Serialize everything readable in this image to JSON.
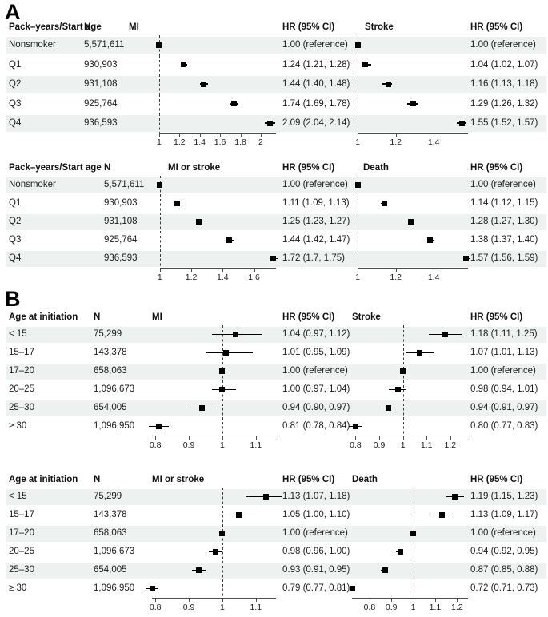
{
  "figure": {
    "panel_a_label": "A",
    "panel_b_label": "B"
  },
  "colors": {
    "stripe": "#edf1f0",
    "marker": "#000000",
    "text": "#1b1b1b",
    "axis": "#4d4d4d"
  },
  "chart_data": [
    {
      "type": "forest",
      "panel": "A",
      "columns": [
        "Pack–years/Start age",
        "N",
        "MI",
        "HR (95% CI)",
        "Stroke",
        "HR (95% CI)"
      ],
      "plots": [
        {
          "name": "MI",
          "domain": [
            0.93,
            2.15
          ],
          "line": [
            1.0,
            2.15
          ],
          "ref": 1.0,
          "ticks": [
            {
              "v": 1,
              "t": "1"
            },
            {
              "v": 1.2,
              "t": "1.2"
            },
            {
              "v": 1.4,
              "t": "1.4"
            },
            {
              "v": 1.6,
              "t": "1.6"
            },
            {
              "v": 1.8,
              "t": "1.8"
            },
            {
              "v": 2,
              "t": "2"
            }
          ]
        },
        {
          "name": "Stroke",
          "domain": [
            0.97,
            1.58
          ],
          "line": [
            1.0,
            1.58
          ],
          "ref": 1.0,
          "ticks": [
            {
              "v": 1,
              "t": "1"
            },
            {
              "v": 1.2,
              "t": "1.2"
            },
            {
              "v": 1.4,
              "t": "1.4"
            }
          ]
        }
      ],
      "rows": [
        {
          "label": "Nonsmoker",
          "n": "5,571,611",
          "est": [
            {
              "hr": 1.0,
              "lo": 1.0,
              "hi": 1.0,
              "text": "1.00 (reference)"
            },
            {
              "hr": 1.0,
              "lo": 1.0,
              "hi": 1.0,
              "text": "1.00 (reference)"
            }
          ]
        },
        {
          "label": "Q1",
          "n": "930,903",
          "est": [
            {
              "hr": 1.24,
              "lo": 1.21,
              "hi": 1.28,
              "text": "1.24 (1.21, 1.28)"
            },
            {
              "hr": 1.04,
              "lo": 1.02,
              "hi": 1.07,
              "text": "1.04 (1.02, 1.07)"
            }
          ]
        },
        {
          "label": "Q2",
          "n": "931,108",
          "est": [
            {
              "hr": 1.44,
              "lo": 1.4,
              "hi": 1.48,
              "text": "1.44 (1.40, 1.48)"
            },
            {
              "hr": 1.16,
              "lo": 1.13,
              "hi": 1.18,
              "text": "1.16 (1.13, 1.18)"
            }
          ]
        },
        {
          "label": "Q3",
          "n": "925,764",
          "est": [
            {
              "hr": 1.74,
              "lo": 1.69,
              "hi": 1.78,
              "text": "1.74 (1.69, 1.78)"
            },
            {
              "hr": 1.29,
              "lo": 1.26,
              "hi": 1.32,
              "text": "1.29 (1.26, 1.32)"
            }
          ]
        },
        {
          "label": "Q4",
          "n": "936,593",
          "est": [
            {
              "hr": 2.09,
              "lo": 2.04,
              "hi": 2.14,
              "text": "2.09 (2.04, 2.14)"
            },
            {
              "hr": 1.55,
              "lo": 1.52,
              "hi": 1.57,
              "text": "1.55 (1.52, 1.57)"
            }
          ]
        }
      ]
    },
    {
      "type": "forest",
      "panel": "A",
      "columns": [
        "Pack–years/Start age",
        "N",
        "MI or stroke",
        "HR (95% CI)",
        "Death",
        "HR (95% CI)"
      ],
      "plots": [
        {
          "name": "MI or stroke",
          "domain": [
            0.95,
            1.74
          ],
          "line": [
            1.0,
            1.74
          ],
          "ref": 1.0,
          "ticks": [
            {
              "v": 1,
              "t": "1"
            },
            {
              "v": 1.2,
              "t": "1.2"
            },
            {
              "v": 1.4,
              "t": "1.4"
            },
            {
              "v": 1.6,
              "t": "1.6"
            }
          ]
        },
        {
          "name": "Death",
          "domain": [
            0.97,
            1.58
          ],
          "line": [
            1.0,
            1.58
          ],
          "ref": 1.0,
          "ticks": [
            {
              "v": 1,
              "t": "1"
            },
            {
              "v": 1.2,
              "t": "1.2"
            },
            {
              "v": 1.4,
              "t": "1.4"
            }
          ]
        }
      ],
      "rows": [
        {
          "label": "Nonsmoker",
          "n": "5,571,611",
          "est": [
            {
              "hr": 1.0,
              "lo": 1.0,
              "hi": 1.0,
              "text": "1.00 (reference)"
            },
            {
              "hr": 1.0,
              "lo": 1.0,
              "hi": 1.0,
              "text": "1.00 (reference)"
            }
          ]
        },
        {
          "label": "Q1",
          "n": "930,903",
          "est": [
            {
              "hr": 1.11,
              "lo": 1.09,
              "hi": 1.13,
              "text": "1.11 (1.09, 1.13)"
            },
            {
              "hr": 1.14,
              "lo": 1.12,
              "hi": 1.15,
              "text": "1.14 (1.12, 1.15)"
            }
          ]
        },
        {
          "label": "Q2",
          "n": "931,108",
          "est": [
            {
              "hr": 1.25,
              "lo": 1.23,
              "hi": 1.27,
              "text": "1.25 (1.23, 1.27)"
            },
            {
              "hr": 1.28,
              "lo": 1.27,
              "hi": 1.3,
              "text": "1.28 (1.27, 1.30)"
            }
          ]
        },
        {
          "label": "Q3",
          "n": "925,764",
          "est": [
            {
              "hr": 1.44,
              "lo": 1.42,
              "hi": 1.47,
              "text": "1.44 (1.42, 1.47)"
            },
            {
              "hr": 1.38,
              "lo": 1.37,
              "hi": 1.4,
              "text": "1.38 (1.37, 1.40)"
            }
          ]
        },
        {
          "label": "Q4",
          "n": "936,593",
          "est": [
            {
              "hr": 1.72,
              "lo": 1.7,
              "hi": 1.75,
              "text": "1.72 (1.7, 1.75)"
            },
            {
              "hr": 1.57,
              "lo": 1.56,
              "hi": 1.59,
              "text": "1.57 (1.56, 1.59)"
            }
          ]
        }
      ]
    },
    {
      "type": "forest",
      "panel": "B",
      "columns": [
        "Age at initiation",
        "N",
        "MI",
        "HR (95% CI)",
        "Stroke",
        "HR (95% CI)"
      ],
      "plots": [
        {
          "name": "MI",
          "domain": [
            0.79,
            1.16
          ],
          "line": [
            0.79,
            1.16
          ],
          "ref": 1.0,
          "ticks": [
            {
              "v": 0.8,
              "t": "0.8"
            },
            {
              "v": 0.9,
              "t": "0.9"
            },
            {
              "v": 1,
              "t": "1"
            },
            {
              "v": 1.1,
              "t": "1.1"
            }
          ]
        },
        {
          "name": "Stroke",
          "domain": [
            0.785,
            1.275
          ],
          "line": [
            0.785,
            1.275
          ],
          "ref": 1.0,
          "ticks": [
            {
              "v": 0.8,
              "t": "0.8"
            },
            {
              "v": 0.9,
              "t": "0.9"
            },
            {
              "v": 1,
              "t": "1"
            },
            {
              "v": 1.1,
              "t": "1.1"
            },
            {
              "v": 1.2,
              "t": "1.2"
            }
          ]
        }
      ],
      "rows": [
        {
          "label": "< 15",
          "n": "75,299",
          "est": [
            {
              "hr": 1.04,
              "lo": 0.97,
              "hi": 1.12,
              "text": "1.04 (0.97, 1.12)"
            },
            {
              "hr": 1.18,
              "lo": 1.11,
              "hi": 1.25,
              "text": "1.18 (1.11, 1.25)"
            }
          ]
        },
        {
          "label": "15–17",
          "n": "143,378",
          "est": [
            {
              "hr": 1.01,
              "lo": 0.95,
              "hi": 1.09,
              "text": "1.01 (0.95, 1.09)"
            },
            {
              "hr": 1.07,
              "lo": 1.01,
              "hi": 1.13,
              "text": "1.07 (1.01, 1.13)"
            }
          ]
        },
        {
          "label": "17–20",
          "n": "658,063",
          "est": [
            {
              "hr": 1.0,
              "lo": 1.0,
              "hi": 1.0,
              "text": "1.00 (reference)"
            },
            {
              "hr": 1.0,
              "lo": 1.0,
              "hi": 1.0,
              "text": "1.00 (reference)"
            }
          ]
        },
        {
          "label": "20–25",
          "n": "1,096,673",
          "est": [
            {
              "hr": 1.0,
              "lo": 0.97,
              "hi": 1.04,
              "text": "1.00 (0.97, 1.04)"
            },
            {
              "hr": 0.98,
              "lo": 0.94,
              "hi": 1.01,
              "text": "0.98 (0.94, 1.01)"
            }
          ]
        },
        {
          "label": "25–30",
          "n": "654,005",
          "est": [
            {
              "hr": 0.94,
              "lo": 0.9,
              "hi": 0.97,
              "text": "0.94 (0.90, 0.97)"
            },
            {
              "hr": 0.94,
              "lo": 0.91,
              "hi": 0.97,
              "text": "0.94 (0.91, 0.97)"
            }
          ]
        },
        {
          "label": "≥ 30",
          "n": "1,096,950",
          "est": [
            {
              "hr": 0.81,
              "lo": 0.78,
              "hi": 0.84,
              "text": "0.81 (0.78, 0.84)"
            },
            {
              "hr": 0.8,
              "lo": 0.77,
              "hi": 0.83,
              "text": "0.80 (0.77, 0.83)"
            }
          ]
        }
      ]
    },
    {
      "type": "forest",
      "panel": "B",
      "columns": [
        "Age at initiation",
        "N",
        "MI or stroke",
        "HR (95% CI)",
        "Death",
        "HR (95% CI)"
      ],
      "plots": [
        {
          "name": "MI or stroke",
          "domain": [
            0.79,
            1.16
          ],
          "line": [
            0.79,
            1.16
          ],
          "ref": 1.0,
          "ticks": [
            {
              "v": 0.8,
              "t": "0.8"
            },
            {
              "v": 0.9,
              "t": "0.9"
            },
            {
              "v": 1,
              "t": "1"
            },
            {
              "v": 1.1,
              "t": "1.1"
            }
          ]
        },
        {
          "name": "Death",
          "domain": [
            0.72,
            1.25
          ],
          "line": [
            0.72,
            1.25
          ],
          "ref": 1.0,
          "ticks": [
            {
              "v": 0.8,
              "t": "0.8"
            },
            {
              "v": 0.9,
              "t": "0.9"
            },
            {
              "v": 1,
              "t": "1"
            },
            {
              "v": 1.1,
              "t": "1.1"
            },
            {
              "v": 1.2,
              "t": "1.2"
            }
          ]
        }
      ],
      "rows": [
        {
          "label": "< 15",
          "n": "75,299",
          "est": [
            {
              "hr": 1.13,
              "lo": 1.07,
              "hi": 1.18,
              "text": "1.13 (1.07, 1.18)"
            },
            {
              "hr": 1.19,
              "lo": 1.15,
              "hi": 1.23,
              "text": "1.19 (1.15, 1.23)"
            }
          ]
        },
        {
          "label": "15–17",
          "n": "143,378",
          "est": [
            {
              "hr": 1.05,
              "lo": 1.0,
              "hi": 1.1,
              "text": "1.05 (1.00, 1.10)"
            },
            {
              "hr": 1.13,
              "lo": 1.09,
              "hi": 1.17,
              "text": "1.13 (1.09, 1.17)"
            }
          ]
        },
        {
          "label": "17–20",
          "n": "658,063",
          "est": [
            {
              "hr": 1.0,
              "lo": 1.0,
              "hi": 1.0,
              "text": "1.00 (reference)"
            },
            {
              "hr": 1.0,
              "lo": 1.0,
              "hi": 1.0,
              "text": "1.00 (reference)"
            }
          ]
        },
        {
          "label": "20–25",
          "n": "1,096,673",
          "est": [
            {
              "hr": 0.98,
              "lo": 0.96,
              "hi": 1.0,
              "text": "0.98 (0.96, 1.00)"
            },
            {
              "hr": 0.94,
              "lo": 0.92,
              "hi": 0.95,
              "text": "0.94 (0.92, 0.95)"
            }
          ]
        },
        {
          "label": "25–30",
          "n": "654,005",
          "est": [
            {
              "hr": 0.93,
              "lo": 0.91,
              "hi": 0.95,
              "text": "0.93 (0.91, 0.95)"
            },
            {
              "hr": 0.87,
              "lo": 0.85,
              "hi": 0.88,
              "text": "0.87 (0.85, 0.88)"
            }
          ]
        },
        {
          "label": "≥ 30",
          "n": "1,096,950",
          "est": [
            {
              "hr": 0.79,
              "lo": 0.77,
              "hi": 0.81,
              "text": "0.79 (0.77, 0.81)"
            },
            {
              "hr": 0.72,
              "lo": 0.71,
              "hi": 0.73,
              "text": "0.72 (0.71, 0.73)"
            }
          ]
        }
      ]
    }
  ]
}
